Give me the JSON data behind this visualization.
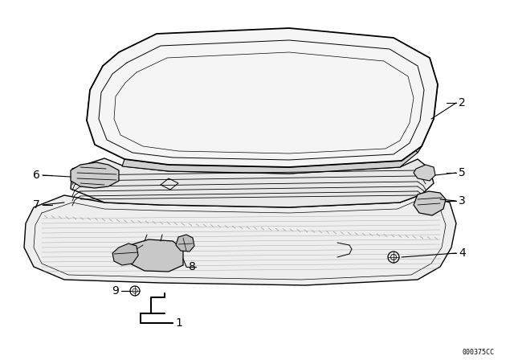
{
  "bg_color": "#ffffff",
  "line_color": "#000000",
  "fig_width": 6.4,
  "fig_height": 4.48,
  "dpi": 100,
  "watermark": "000375CC",
  "roof_color": "#f5f5f5",
  "frame_color": "#e8e8e8",
  "ceil_color": "#eeeeee"
}
